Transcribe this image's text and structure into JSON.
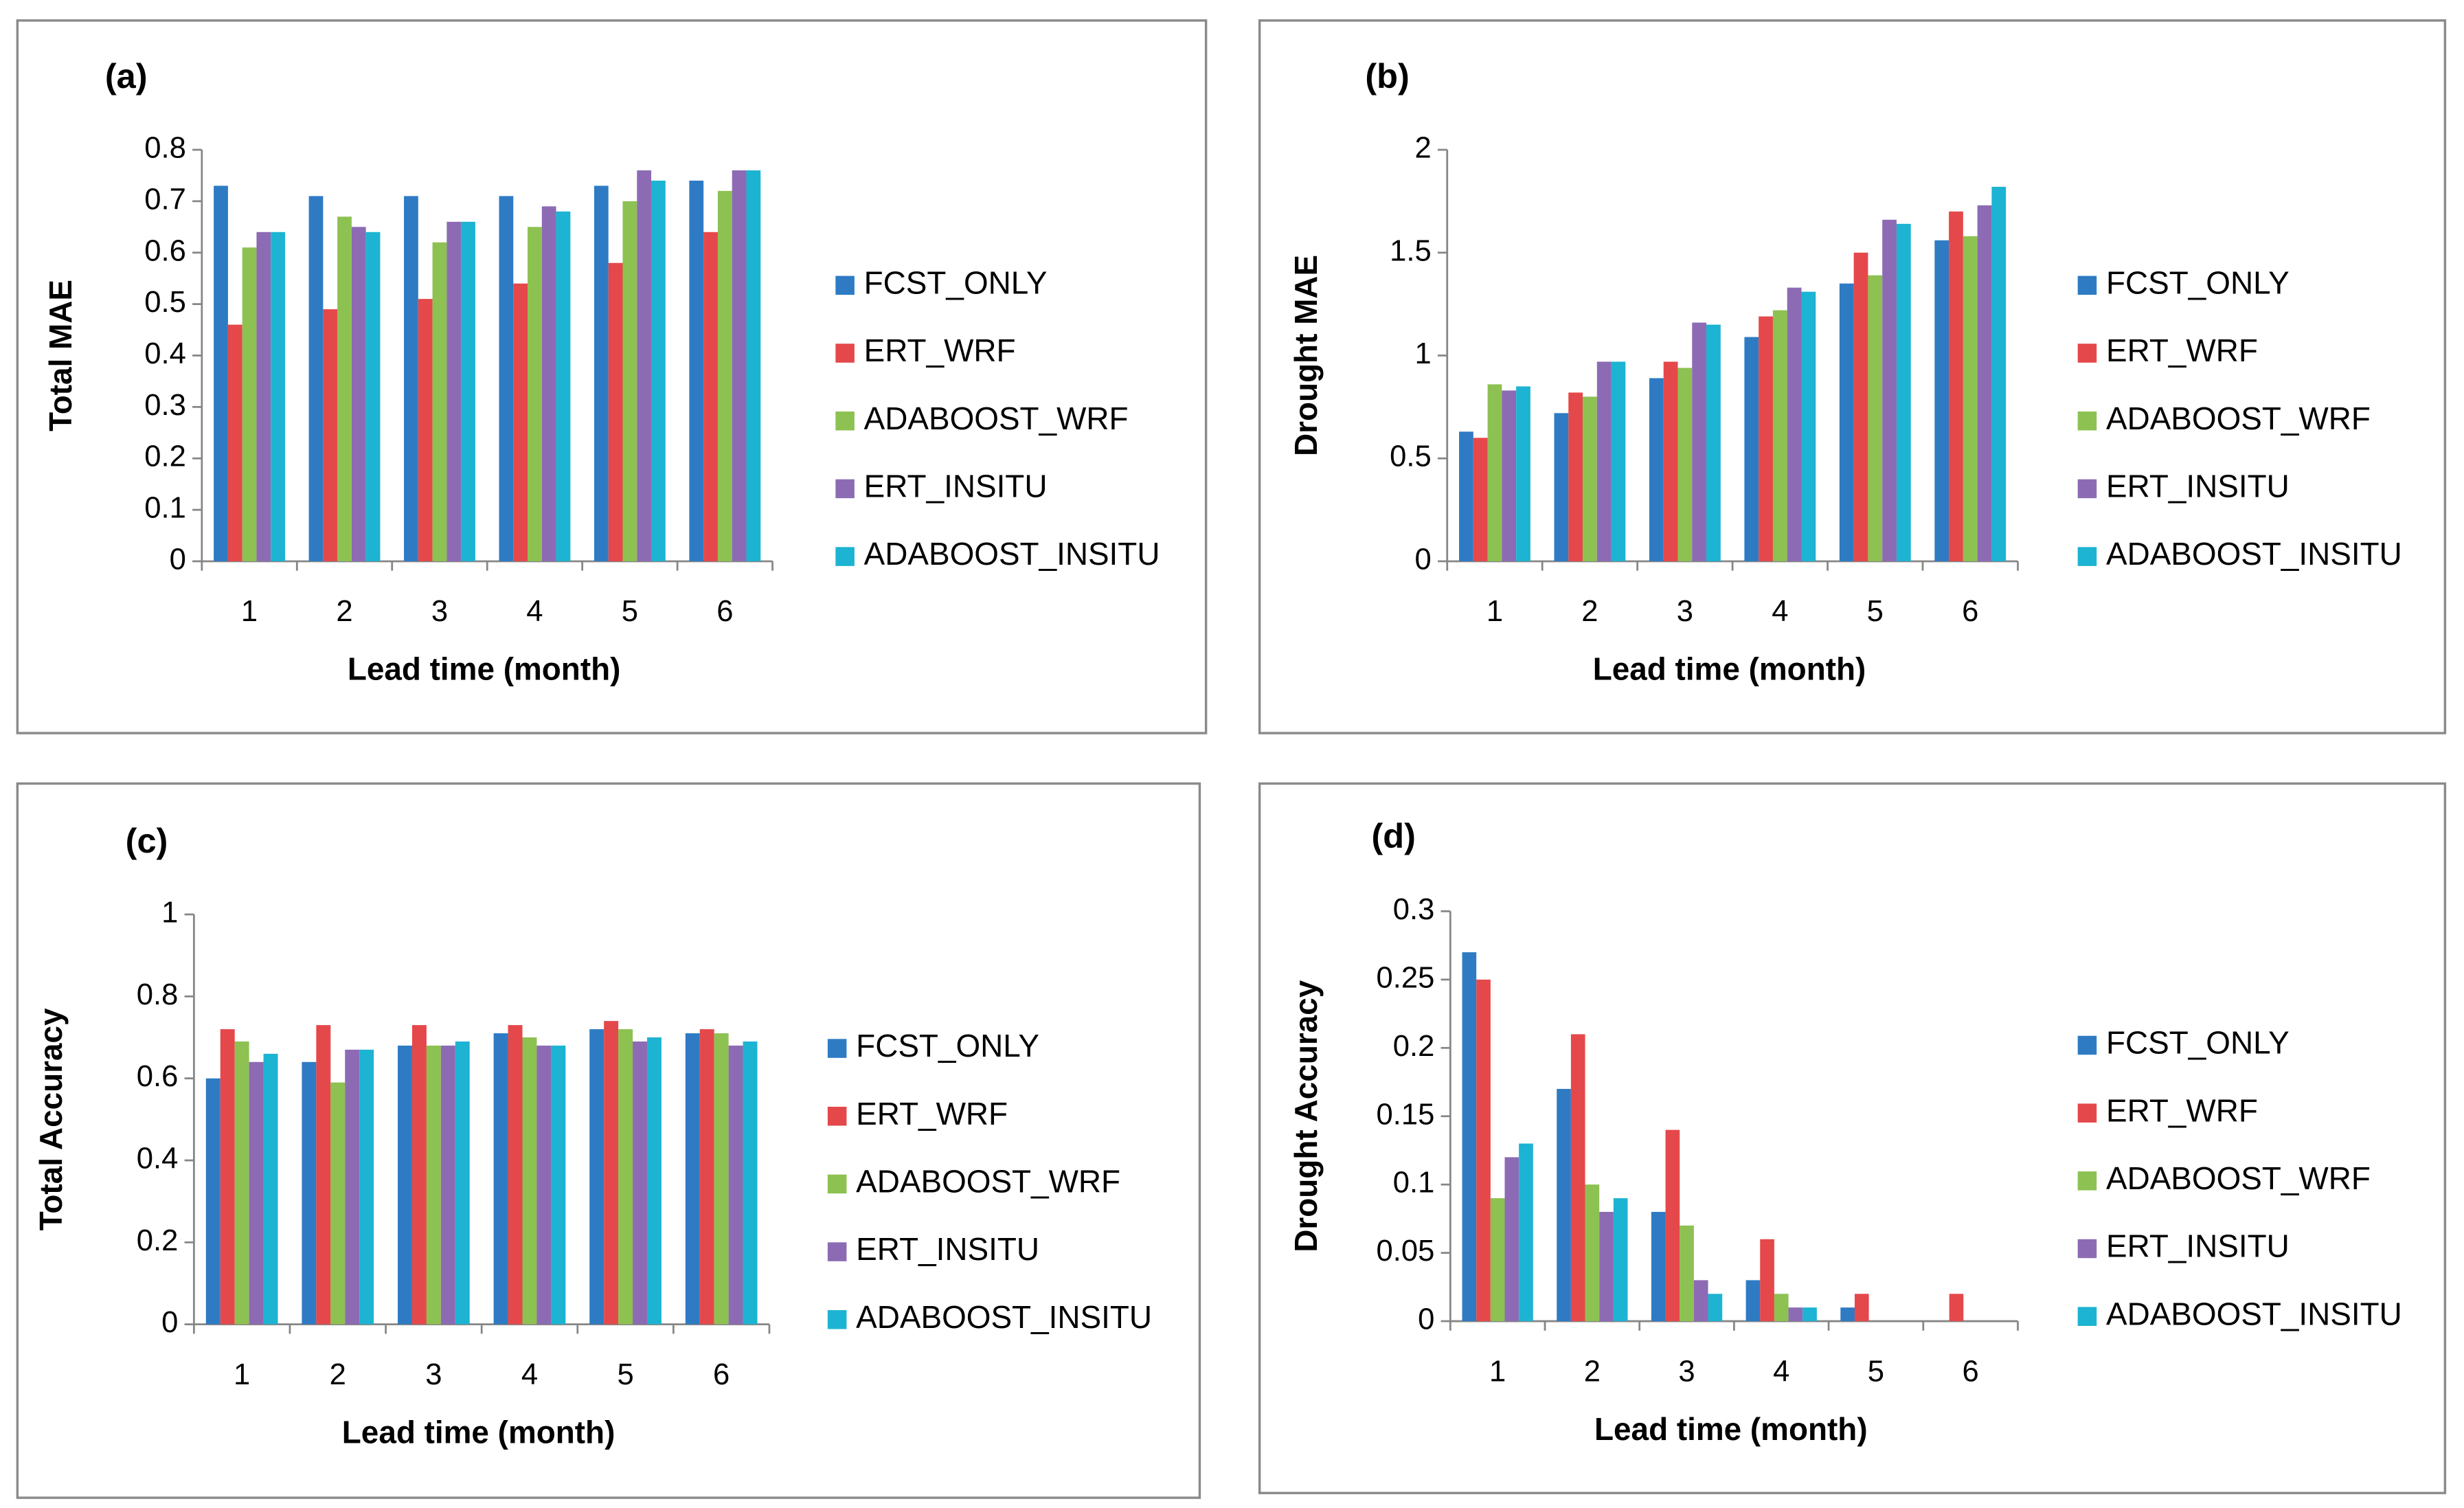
{
  "chart_data": [
    {
      "type": "bar",
      "title": "(a)",
      "y_label": "Total MAE",
      "x_label": "Lead time (month)",
      "categories": [
        "1",
        "2",
        "3",
        "4",
        "5",
        "6"
      ],
      "ylim": [
        0,
        0.8
      ],
      "yticks": [
        0,
        0.1,
        0.2,
        0.3,
        0.4,
        0.5,
        0.6,
        0.7,
        0.8
      ],
      "series": [
        {
          "name": "FCST_ONLY",
          "color": "#2e7bc4",
          "values": [
            0.73,
            0.71,
            0.71,
            0.71,
            0.73,
            0.74
          ]
        },
        {
          "name": "ERT_WRF",
          "color": "#e5484a",
          "values": [
            0.46,
            0.49,
            0.51,
            0.54,
            0.58,
            0.64
          ]
        },
        {
          "name": "ADABOOST_WRF",
          "color": "#8dc152",
          "values": [
            0.61,
            0.67,
            0.62,
            0.65,
            0.7,
            0.72
          ]
        },
        {
          "name": "ERT_INSITU",
          "color": "#8c6bb4",
          "values": [
            0.64,
            0.65,
            0.66,
            0.69,
            0.76,
            0.76
          ]
        },
        {
          "name": "ADABOOST_INSITU",
          "color": "#1db3d2",
          "values": [
            0.64,
            0.64,
            0.66,
            0.68,
            0.74,
            0.76
          ]
        }
      ]
    },
    {
      "type": "bar",
      "title": "(b)",
      "y_label": "Drought MAE",
      "x_label": "Lead time (month)",
      "categories": [
        "1",
        "2",
        "3",
        "4",
        "5",
        "6"
      ],
      "ylim": [
        0,
        2
      ],
      "yticks": [
        0,
        0.5,
        1,
        1.5,
        2
      ],
      "series": [
        {
          "name": "FCST_ONLY",
          "color": "#2e7bc4",
          "values": [
            0.63,
            0.72,
            0.89,
            1.09,
            1.35,
            1.56
          ]
        },
        {
          "name": "ERT_WRF",
          "color": "#e5484a",
          "values": [
            0.6,
            0.82,
            0.97,
            1.19,
            1.5,
            1.7
          ]
        },
        {
          "name": "ADABOOST_WRF",
          "color": "#8dc152",
          "values": [
            0.86,
            0.8,
            0.94,
            1.22,
            1.39,
            1.58
          ]
        },
        {
          "name": "ERT_INSITU",
          "color": "#8c6bb4",
          "values": [
            0.83,
            0.97,
            1.16,
            1.33,
            1.66,
            1.73
          ]
        },
        {
          "name": "ADABOOST_INSITU",
          "color": "#1db3d2",
          "values": [
            0.85,
            0.97,
            1.15,
            1.31,
            1.64,
            1.82
          ]
        }
      ]
    },
    {
      "type": "bar",
      "title": "(c)",
      "y_label": "Total Accuracy",
      "x_label": "Lead time (month)",
      "categories": [
        "1",
        "2",
        "3",
        "4",
        "5",
        "6"
      ],
      "ylim": [
        0,
        1
      ],
      "yticks": [
        0,
        0.2,
        0.4,
        0.6,
        0.8,
        1
      ],
      "series": [
        {
          "name": "FCST_ONLY",
          "color": "#2e7bc4",
          "values": [
            0.6,
            0.64,
            0.68,
            0.71,
            0.72,
            0.71
          ]
        },
        {
          "name": "ERT_WRF",
          "color": "#e5484a",
          "values": [
            0.72,
            0.73,
            0.73,
            0.73,
            0.74,
            0.72
          ]
        },
        {
          "name": "ADABOOST_WRF",
          "color": "#8dc152",
          "values": [
            0.69,
            0.59,
            0.68,
            0.7,
            0.72,
            0.71
          ]
        },
        {
          "name": "ERT_INSITU",
          "color": "#8c6bb4",
          "values": [
            0.64,
            0.67,
            0.68,
            0.68,
            0.69,
            0.68
          ]
        },
        {
          "name": "ADABOOST_INSITU",
          "color": "#1db3d2",
          "values": [
            0.66,
            0.67,
            0.69,
            0.68,
            0.7,
            0.69
          ]
        }
      ]
    },
    {
      "type": "bar",
      "title": "(d)",
      "y_label": "Drought Accuracy",
      "x_label": "Lead time (month)",
      "categories": [
        "1",
        "2",
        "3",
        "4",
        "5",
        "6"
      ],
      "ylim": [
        0,
        0.3
      ],
      "yticks": [
        0,
        0.05,
        0.1,
        0.15,
        0.2,
        0.25,
        0.3
      ],
      "series": [
        {
          "name": "FCST_ONLY",
          "color": "#2e7bc4",
          "values": [
            0.27,
            0.17,
            0.08,
            0.03,
            0.01,
            0
          ]
        },
        {
          "name": "ERT_WRF",
          "color": "#e5484a",
          "values": [
            0.25,
            0.21,
            0.14,
            0.06,
            0.02,
            0.02
          ]
        },
        {
          "name": "ADABOOST_WRF",
          "color": "#8dc152",
          "values": [
            0.09,
            0.1,
            0.07,
            0.02,
            0,
            0
          ]
        },
        {
          "name": "ERT_INSITU",
          "color": "#8c6bb4",
          "values": [
            0.12,
            0.08,
            0.03,
            0.01,
            0,
            0
          ]
        },
        {
          "name": "ADABOOST_INSITU",
          "color": "#1db3d2",
          "values": [
            0.13,
            0.09,
            0.02,
            0.01,
            0,
            0
          ]
        }
      ]
    }
  ]
}
